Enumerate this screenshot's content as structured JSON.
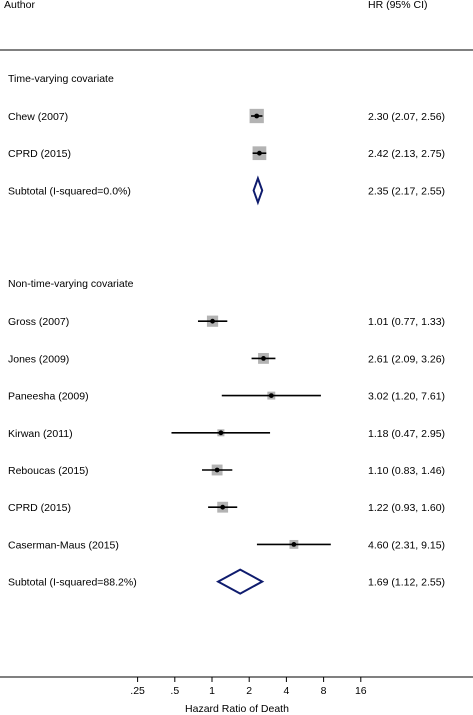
{
  "chart_data": {
    "type": "forest",
    "header": {
      "author": "Author",
      "estimate": "HR (95% CI)"
    },
    "xlabel": "Hazard Ratio of Death",
    "x_scale": "log",
    "xlim": [
      0.125,
      32
    ],
    "xticks": [
      {
        "label": ".25",
        "value": 0.25
      },
      {
        "label": ".5",
        "value": 0.5
      },
      {
        "label": "1",
        "value": 1
      },
      {
        "label": "2",
        "value": 2
      },
      {
        "label": "4",
        "value": 4
      },
      {
        "label": "8",
        "value": 8
      },
      {
        "label": "16",
        "value": 16
      }
    ],
    "subgroups": [
      {
        "label": "Time-varying covariate",
        "studies": [
          {
            "name": "Chew (2007)",
            "hr": 2.3,
            "lo": 2.07,
            "hi": 2.56,
            "text": "2.30 (2.07, 2.56)",
            "weight": 0.26
          },
          {
            "name": "CPRD (2015)",
            "hr": 2.42,
            "lo": 2.13,
            "hi": 2.75,
            "text": "2.42 (2.13, 2.75)",
            "weight": 0.24
          }
        ],
        "subtotal": {
          "label": "Subtotal  (I-squared=0.0%)",
          "hr": 2.35,
          "lo": 2.17,
          "hi": 2.55,
          "text": "2.35 (2.17, 2.55)"
        }
      },
      {
        "label": "Non-time-varying covariate",
        "studies": [
          {
            "name": "Gross (2007)",
            "hr": 1.01,
            "lo": 0.77,
            "hi": 1.33,
            "text": "1.01 (0.77, 1.33)",
            "weight": 0.16
          },
          {
            "name": "Jones (2009)",
            "hr": 2.61,
            "lo": 2.09,
            "hi": 3.26,
            "text": "2.61 (2.09, 3.26)",
            "weight": 0.15
          },
          {
            "name": "Paneesha (2009)",
            "hr": 3.02,
            "lo": 1.2,
            "hi": 7.61,
            "text": "3.02 (1.20, 7.61)",
            "weight": 0.08
          },
          {
            "name": "Kirwan (2011)",
            "hr": 1.18,
            "lo": 0.47,
            "hi": 2.95,
            "text": "1.18 (0.47, 2.95)",
            "weight": 0.06
          },
          {
            "name": "Reboucas (2015)",
            "hr": 1.1,
            "lo": 0.83,
            "hi": 1.46,
            "text": "1.10 (0.83, 1.46)",
            "weight": 0.15
          },
          {
            "name": "CPRD (2015)",
            "hr": 1.22,
            "lo": 0.93,
            "hi": 1.6,
            "text": "1.22 (0.93, 1.60)",
            "weight": 0.15
          },
          {
            "name": "Caserman-Maus (2015)",
            "hr": 4.6,
            "lo": 2.31,
            "hi": 9.15,
            "text": "4.60 (2.31, 9.15)",
            "weight": 0.1
          }
        ],
        "subtotal": {
          "label": "Subtotal  (I-squared=88.2%)",
          "hr": 1.69,
          "lo": 1.12,
          "hi": 2.55,
          "text": "1.69 (1.12, 2.55)"
        }
      }
    ],
    "colors": {
      "box": "#b3b3b3",
      "diamond": "#0f1c6e",
      "line": "#000000"
    }
  }
}
